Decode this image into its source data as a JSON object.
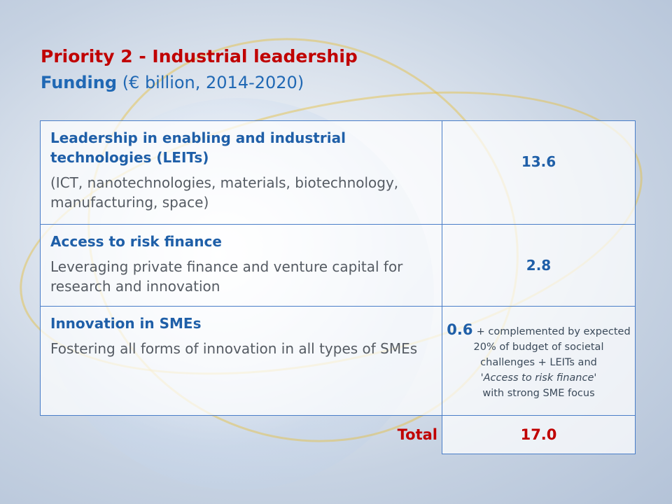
{
  "header": {
    "title": "Priority 2 - Industrial leadership",
    "subtitle_bold": "Funding",
    "subtitle_rest": "(€ billion, 2014-2020)"
  },
  "table": {
    "rows": [
      {
        "heading": "Leadership in enabling and industrial technologies (LEITs)",
        "description": "(ICT, nanotechnologies, materials, biotechnology, manufacturing, space)",
        "amount": "13.6"
      },
      {
        "heading": "Access to risk finance",
        "description": "Leveraging private finance and venture capital for research and innovation",
        "amount": "2.8"
      },
      {
        "heading": "Innovation in SMEs",
        "description": "Fostering all forms of innovation in all types of SMEs",
        "amount": "0.6",
        "note": "+ complemented by expected 20% of budget of societal challenges + LEITs and",
        "note_italic": "'Access to risk finance'",
        "note_end": "with strong SME focus"
      }
    ],
    "total_label": "Total",
    "total_value": "17.0"
  }
}
